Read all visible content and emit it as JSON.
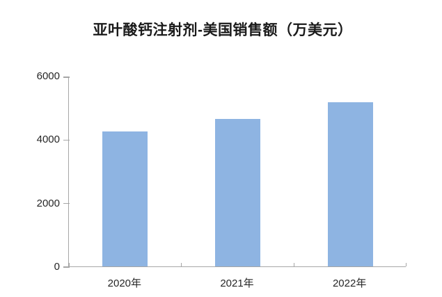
{
  "chart_data": {
    "type": "bar",
    "title": "亚叶酸钙注射剂-美国销售额（万美元）",
    "categories": [
      "2020年",
      "2021年",
      "2022年"
    ],
    "values": [
      4250,
      4650,
      5170
    ],
    "xlabel": "",
    "ylabel": "",
    "ylim": [
      0,
      6000
    ],
    "yticks": [
      0,
      2000,
      4000,
      6000
    ],
    "grid": false,
    "legend_position": "none",
    "bar_color": "#8EB4E2",
    "axis_color": "#A6A6A6",
    "tick_label_color": "#262626",
    "title_color": "#1A1A1A",
    "background_color": "#FFFFFF"
  }
}
